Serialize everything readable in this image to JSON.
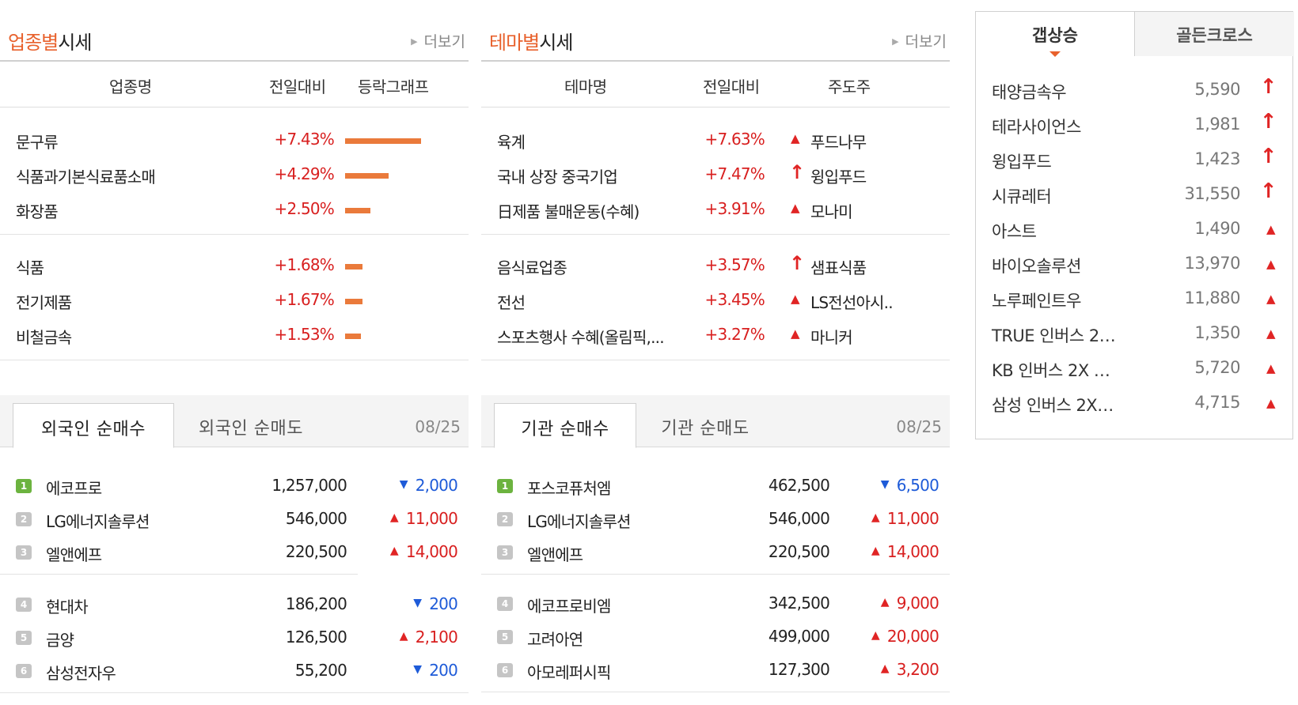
{
  "sector": {
    "title_highlight": "업종별",
    "title_rest": "시세",
    "more": "더보기",
    "columns": [
      "업종명",
      "전일대비",
      "등락그래프"
    ],
    "groups": [
      [
        {
          "name": "문구류",
          "change": "+7.43%",
          "bar_pct": 7.43
        },
        {
          "name": "식품과기본식료품소매",
          "change": "+4.29%",
          "bar_pct": 4.29
        },
        {
          "name": "화장품",
          "change": "+2.50%",
          "bar_pct": 2.5
        }
      ],
      [
        {
          "name": "식품",
          "change": "+1.68%",
          "bar_pct": 1.68
        },
        {
          "name": "전기제품",
          "change": "+1.67%",
          "bar_pct": 1.67
        },
        {
          "name": "비철금속",
          "change": "+1.53%",
          "bar_pct": 1.53
        }
      ]
    ]
  },
  "theme": {
    "title_highlight": "테마별",
    "title_rest": "시세",
    "more": "더보기",
    "columns": [
      "테마명",
      "전일대비",
      "주도주"
    ],
    "groups": [
      [
        {
          "name": "육계",
          "change": "+7.63%",
          "leader_icon": "up-triangle-icon",
          "leader": "푸드나무"
        },
        {
          "name": "국내 상장 중국기업",
          "change": "+7.47%",
          "leader_icon": "up-arrow-icon",
          "leader": "윙입푸드"
        },
        {
          "name": "日제품 불매운동(수혜)",
          "change": "+3.91%",
          "leader_icon": "up-triangle-icon",
          "leader": "모나미"
        }
      ],
      [
        {
          "name": "음식료업종",
          "change": "+3.57%",
          "leader_icon": "up-arrow-icon",
          "leader": "샘표식품"
        },
        {
          "name": "전선",
          "change": "+3.45%",
          "leader_icon": "up-triangle-icon",
          "leader": "LS전선아시.."
        },
        {
          "name": "스포츠행사 수혜(올림픽,...",
          "change": "+3.27%",
          "leader_icon": "up-triangle-icon",
          "leader": "마니커"
        }
      ]
    ]
  },
  "foreign": {
    "tab_active": "외국인 순매수",
    "tab_inactive": "외국인 순매도",
    "date": "08/25",
    "groups": [
      [
        {
          "rank": "1",
          "name": "에코프로",
          "price": "1,257,000",
          "dir": "down",
          "change": "2,000"
        },
        {
          "rank": "2",
          "name": "LG에너지솔루션",
          "price": "546,000",
          "dir": "up",
          "change": "11,000"
        },
        {
          "rank": "3",
          "name": "엘앤에프",
          "price": "220,500",
          "dir": "up",
          "change": "14,000"
        }
      ],
      [
        {
          "rank": "4",
          "name": "현대차",
          "price": "186,200",
          "dir": "down",
          "change": "200"
        },
        {
          "rank": "5",
          "name": "금양",
          "price": "126,500",
          "dir": "up",
          "change": "2,100"
        },
        {
          "rank": "6",
          "name": "삼성전자우",
          "price": "55,200",
          "dir": "down",
          "change": "200"
        }
      ]
    ]
  },
  "institution": {
    "tab_active": "기관 순매수",
    "tab_inactive": "기관 순매도",
    "date": "08/25",
    "groups": [
      [
        {
          "rank": "1",
          "name": "포스코퓨처엠",
          "price": "462,500",
          "dir": "down",
          "change": "6,500"
        },
        {
          "rank": "2",
          "name": "LG에너지솔루션",
          "price": "546,000",
          "dir": "up",
          "change": "11,000"
        },
        {
          "rank": "3",
          "name": "엘앤에프",
          "price": "220,500",
          "dir": "up",
          "change": "14,000"
        }
      ],
      [
        {
          "rank": "4",
          "name": "에코프로비엠",
          "price": "342,500",
          "dir": "up",
          "change": "9,000"
        },
        {
          "rank": "5",
          "name": "고려아연",
          "price": "499,000",
          "dir": "up",
          "change": "20,000"
        },
        {
          "rank": "6",
          "name": "아모레퍼시픽",
          "price": "127,300",
          "dir": "up",
          "change": "3,200"
        }
      ]
    ]
  },
  "gap": {
    "tab_active": "갭상승",
    "tab_inactive": "골든크로스",
    "items": [
      {
        "name": "태양금속우",
        "price": "5,590",
        "icon": "up-arrow-icon"
      },
      {
        "name": "테라사이언스",
        "price": "1,981",
        "icon": "up-arrow-icon"
      },
      {
        "name": "윙입푸드",
        "price": "1,423",
        "icon": "up-arrow-icon"
      },
      {
        "name": "시큐레터",
        "price": "31,550",
        "icon": "up-arrow-icon"
      },
      {
        "name": "아스트",
        "price": "1,490",
        "icon": "up-triangle-icon"
      },
      {
        "name": "바이오솔루션",
        "price": "13,970",
        "icon": "up-triangle-icon"
      },
      {
        "name": "노루페인트우",
        "price": "11,880",
        "icon": "up-triangle-icon"
      },
      {
        "name": "TRUE 인버스 2…",
        "price": "1,350",
        "icon": "up-triangle-icon"
      },
      {
        "name": "KB 인버스 2X …",
        "price": "5,720",
        "icon": "up-triangle-icon"
      },
      {
        "name": "삼성 인버스 2X…",
        "price": "4,715",
        "icon": "up-triangle-icon"
      }
    ]
  },
  "colors": {
    "accent": "#e8612c",
    "bar": "#ea7a3b",
    "up": "#d81f1f",
    "down": "#1e5bd8",
    "rank_first": "#6cb33f",
    "rank_other": "#c5c5c5"
  }
}
